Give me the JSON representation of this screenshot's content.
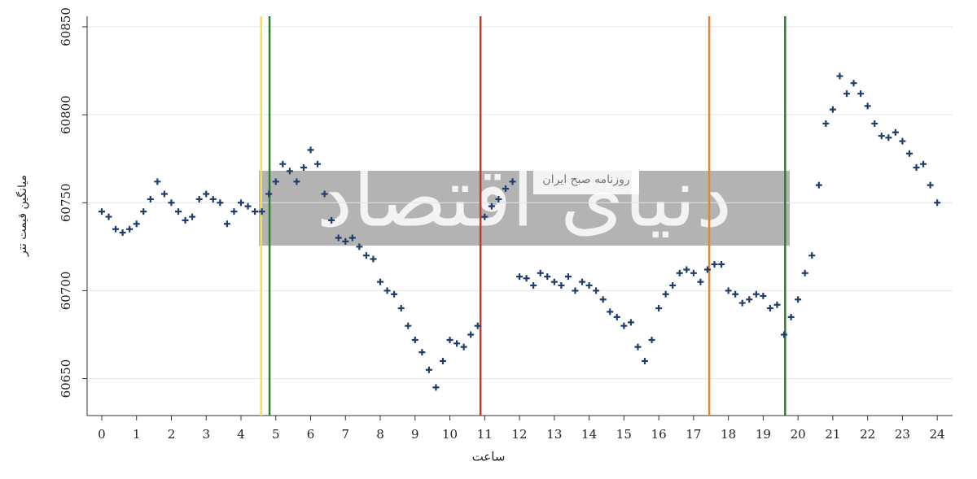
{
  "chart_data": {
    "type": "scatter",
    "x_label": "ساعت",
    "y_label": "میانگین قیمت تتر",
    "watermark": {
      "title": "دنیای اقتصاد",
      "subtitle": "روزنامه صبح ایران"
    },
    "series": [
      {
        "color": "#1f3d6b",
        "x": [
          0,
          0.2,
          0.4,
          0.6,
          0.8,
          1,
          1.2,
          1.4,
          1.6,
          1.8,
          2,
          2.2,
          2.4,
          2.6,
          2.8,
          3,
          3.2,
          3.4,
          3.6,
          3.8,
          4,
          4.2,
          4.4,
          4.6,
          4.8,
          5,
          5.2,
          5.4,
          5.6,
          5.8,
          6,
          6.2,
          6.4,
          6.6,
          6.8,
          7,
          7.2,
          7.4,
          7.6,
          7.8,
          8,
          8.2,
          8.4,
          8.6,
          8.8,
          9,
          9.2,
          9.4,
          9.6,
          9.8,
          10,
          10.2,
          10.4,
          10.6,
          10.8,
          11,
          11.2,
          11.4,
          11.6,
          11.8,
          12,
          12.2,
          12.4,
          12.6,
          12.8,
          13,
          13.2,
          13.4,
          13.6,
          13.8,
          14,
          14.2,
          14.4,
          14.6,
          14.8,
          15,
          15.2,
          15.4,
          15.6,
          15.8,
          16,
          16.2,
          16.4,
          16.6,
          16.8,
          17,
          17.2,
          17.4,
          17.6,
          17.8,
          18,
          18.2,
          18.4,
          18.6,
          18.8,
          19,
          19.2,
          19.4,
          19.6,
          19.8,
          20,
          20.2,
          20.4,
          20.6,
          20.8,
          21,
          21.2,
          21.4,
          21.6,
          21.8,
          22,
          22.2,
          22.4,
          22.6,
          22.8,
          23,
          23.2,
          23.4,
          23.6,
          23.8,
          24
        ],
        "values": [
          60745,
          60742,
          60735,
          60733,
          60735,
          60738,
          60745,
          60752,
          60762,
          60755,
          60750,
          60745,
          60740,
          60742,
          60752,
          60755,
          60752,
          60750,
          60738,
          60745,
          60750,
          60748,
          60745,
          60745,
          60755,
          60762,
          60772,
          60768,
          60762,
          60770,
          60780,
          60772,
          60755,
          60740,
          60730,
          60728,
          60730,
          60725,
          60720,
          60718,
          60705,
          60700,
          60698,
          60690,
          60680,
          60672,
          60665,
          60655,
          60645,
          60660,
          60672,
          60670,
          60668,
          60675,
          60680,
          60742,
          60748,
          60752,
          60758,
          60762,
          60708,
          60707,
          60703,
          60710,
          60708,
          60705,
          60703,
          60708,
          60700,
          60705,
          60703,
          60700,
          60695,
          60688,
          60685,
          60680,
          60682,
          60668,
          60660,
          60672,
          60690,
          60698,
          60703,
          60710,
          60712,
          60710,
          60705,
          60712,
          60715,
          60715,
          60700,
          60698,
          60693,
          60695,
          60698,
          60697,
          60690,
          60692,
          60675,
          60685,
          60695,
          60710,
          60720,
          60760,
          60795,
          60803,
          60822,
          60812,
          60818,
          60812,
          60805,
          60795,
          60788,
          60787,
          60790,
          60785,
          60778,
          60770,
          60772,
          60760,
          60750
        ]
      }
    ],
    "vlines": [
      {
        "x": 4.58,
        "color": "#f2e24a"
      },
      {
        "x": 4.82,
        "color": "#2e7d32"
      },
      {
        "x": 10.88,
        "color": "#c0392b"
      },
      {
        "x": 17.45,
        "color": "#d98b3a"
      },
      {
        "x": 19.63,
        "color": "#2e7d32"
      }
    ],
    "xlim": [
      -0.42,
      24.44
    ],
    "ylim": [
      60629,
      60856
    ],
    "xticks": [
      0,
      1,
      2,
      3,
      4,
      5,
      6,
      7,
      8,
      9,
      10,
      11,
      12,
      13,
      14,
      15,
      16,
      17,
      18,
      19,
      20,
      21,
      22,
      23,
      24
    ],
    "yticks": [
      60650,
      60700,
      60750,
      60800,
      60850
    ],
    "grid": true
  }
}
